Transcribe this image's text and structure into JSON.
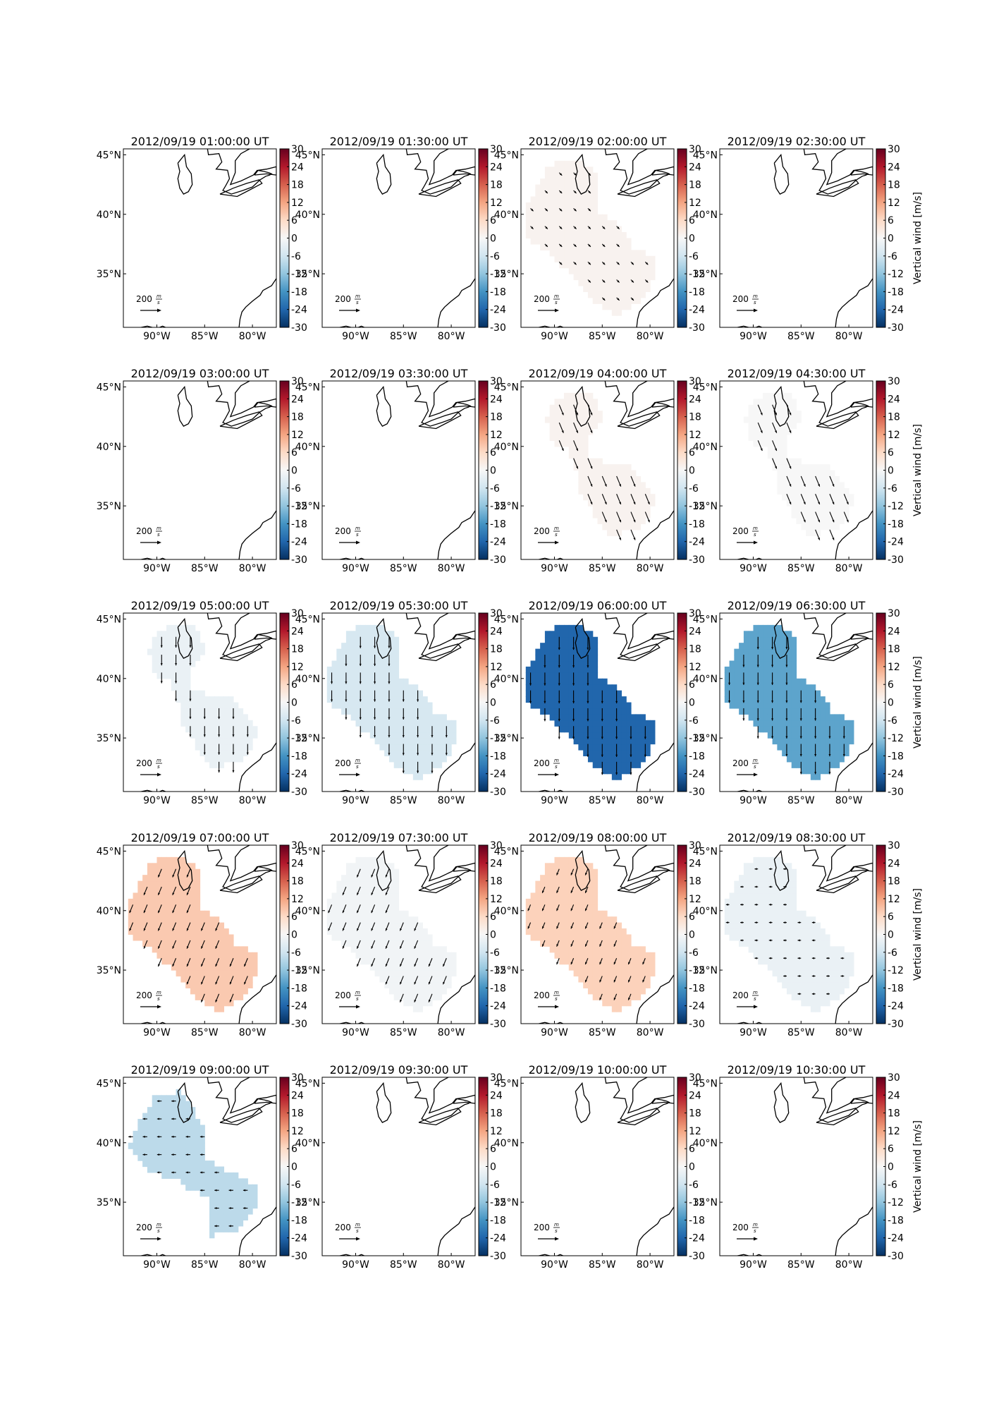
{
  "figure": {
    "grid_rows": 5,
    "grid_cols": 4,
    "colorbar": {
      "label": "Vertical wind [m/s]",
      "ticks": [
        30,
        24,
        18,
        12,
        6,
        0,
        -6,
        -12,
        -18,
        -24,
        -30
      ],
      "range": [
        -30,
        30
      ],
      "colormap": "RdBu_r"
    },
    "map": {
      "lon_range": [
        -93.5,
        -77.5
      ],
      "lat_range": [
        30.5,
        45.5
      ],
      "xtick_labels": [
        "90°W",
        "85°W",
        "80°W"
      ],
      "xtick_values": [
        -90,
        -85,
        -80
      ],
      "ytick_labels": [
        "45°N",
        "40°N",
        "35°N"
      ],
      "ytick_values": [
        45,
        40,
        35
      ]
    },
    "scale_arrow": {
      "value": "200",
      "unit_num": "m",
      "unit_den": "s"
    }
  },
  "chart_data": [
    {
      "type": "heatmap",
      "title": "2012/09/19 01:00:00 UT",
      "vertical_wind": null,
      "shape": "none",
      "arrows": null
    },
    {
      "type": "heatmap",
      "title": "2012/09/19 01:30:00 UT",
      "vertical_wind": null,
      "shape": "none",
      "arrows": null
    },
    {
      "type": "heatmap",
      "title": "2012/09/19 02:00:00 UT",
      "vertical_wind": 1,
      "shape": "diag",
      "arrows": {
        "dir": "SE",
        "len": 0.35
      }
    },
    {
      "type": "heatmap",
      "title": "2012/09/19 02:30:00 UT",
      "vertical_wind": null,
      "shape": "none",
      "arrows": null
    },
    {
      "type": "heatmap",
      "title": "2012/09/19 03:00:00 UT",
      "vertical_wind": null,
      "shape": "none",
      "arrows": null
    },
    {
      "type": "heatmap",
      "title": "2012/09/19 03:30:00 UT",
      "vertical_wind": null,
      "shape": "none",
      "arrows": null
    },
    {
      "type": "heatmap",
      "title": "2012/09/19 04:00:00 UT",
      "vertical_wind": 1,
      "shape": "twoblob",
      "arrows": {
        "dir": "SSE",
        "len": 1.0
      }
    },
    {
      "type": "heatmap",
      "title": "2012/09/19 04:30:00 UT",
      "vertical_wind": 0,
      "shape": "twoblob",
      "arrows": {
        "dir": "SSE",
        "len": 1.0
      }
    },
    {
      "type": "heatmap",
      "title": "2012/09/19 05:00:00 UT",
      "vertical_wind": -2,
      "shape": "twoblob",
      "arrows": {
        "dir": "S",
        "len": 0.95
      }
    },
    {
      "type": "heatmap",
      "title": "2012/09/19 05:30:00 UT",
      "vertical_wind": -5,
      "shape": "diag",
      "arrows": {
        "dir": "S",
        "len": 1.0
      }
    },
    {
      "type": "heatmap",
      "title": "2012/09/19 06:00:00 UT",
      "vertical_wind": -24,
      "shape": "diag",
      "arrows": {
        "dir": "S",
        "len": 1.15
      }
    },
    {
      "type": "heatmap",
      "title": "2012/09/19 06:30:00 UT",
      "vertical_wind": -16,
      "shape": "diag",
      "arrows": {
        "dir": "S",
        "len": 1.1
      }
    },
    {
      "type": "heatmap",
      "title": "2012/09/19 07:00:00 UT",
      "vertical_wind": 8,
      "shape": "diag",
      "arrows": {
        "dir": "SSW",
        "len": 0.8
      }
    },
    {
      "type": "heatmap",
      "title": "2012/09/19 07:30:00 UT",
      "vertical_wind": -1,
      "shape": "diag",
      "arrows": {
        "dir": "SSW",
        "len": 0.8
      }
    },
    {
      "type": "heatmap",
      "title": "2012/09/19 08:00:00 UT",
      "vertical_wind": 7,
      "shape": "diag",
      "arrows": {
        "dir": "SSW",
        "len": 0.6
      }
    },
    {
      "type": "heatmap",
      "title": "2012/09/19 08:30:00 UT",
      "vertical_wind": -2,
      "shape": "diag",
      "arrows": {
        "dir": "W",
        "len": 0.3
      }
    },
    {
      "type": "heatmap",
      "title": "2012/09/19 09:00:00 UT",
      "vertical_wind": -8,
      "shape": "blocky",
      "arrows": {
        "dir": "W",
        "len": 0.4
      }
    },
    {
      "type": "heatmap",
      "title": "2012/09/19 09:30:00 UT",
      "vertical_wind": null,
      "shape": "none",
      "arrows": null
    },
    {
      "type": "heatmap",
      "title": "2012/09/19 10:00:00 UT",
      "vertical_wind": null,
      "shape": "none",
      "arrows": null
    },
    {
      "type": "heatmap",
      "title": "2012/09/19 10:30:00 UT",
      "vertical_wind": null,
      "shape": "none",
      "arrows": null
    }
  ]
}
